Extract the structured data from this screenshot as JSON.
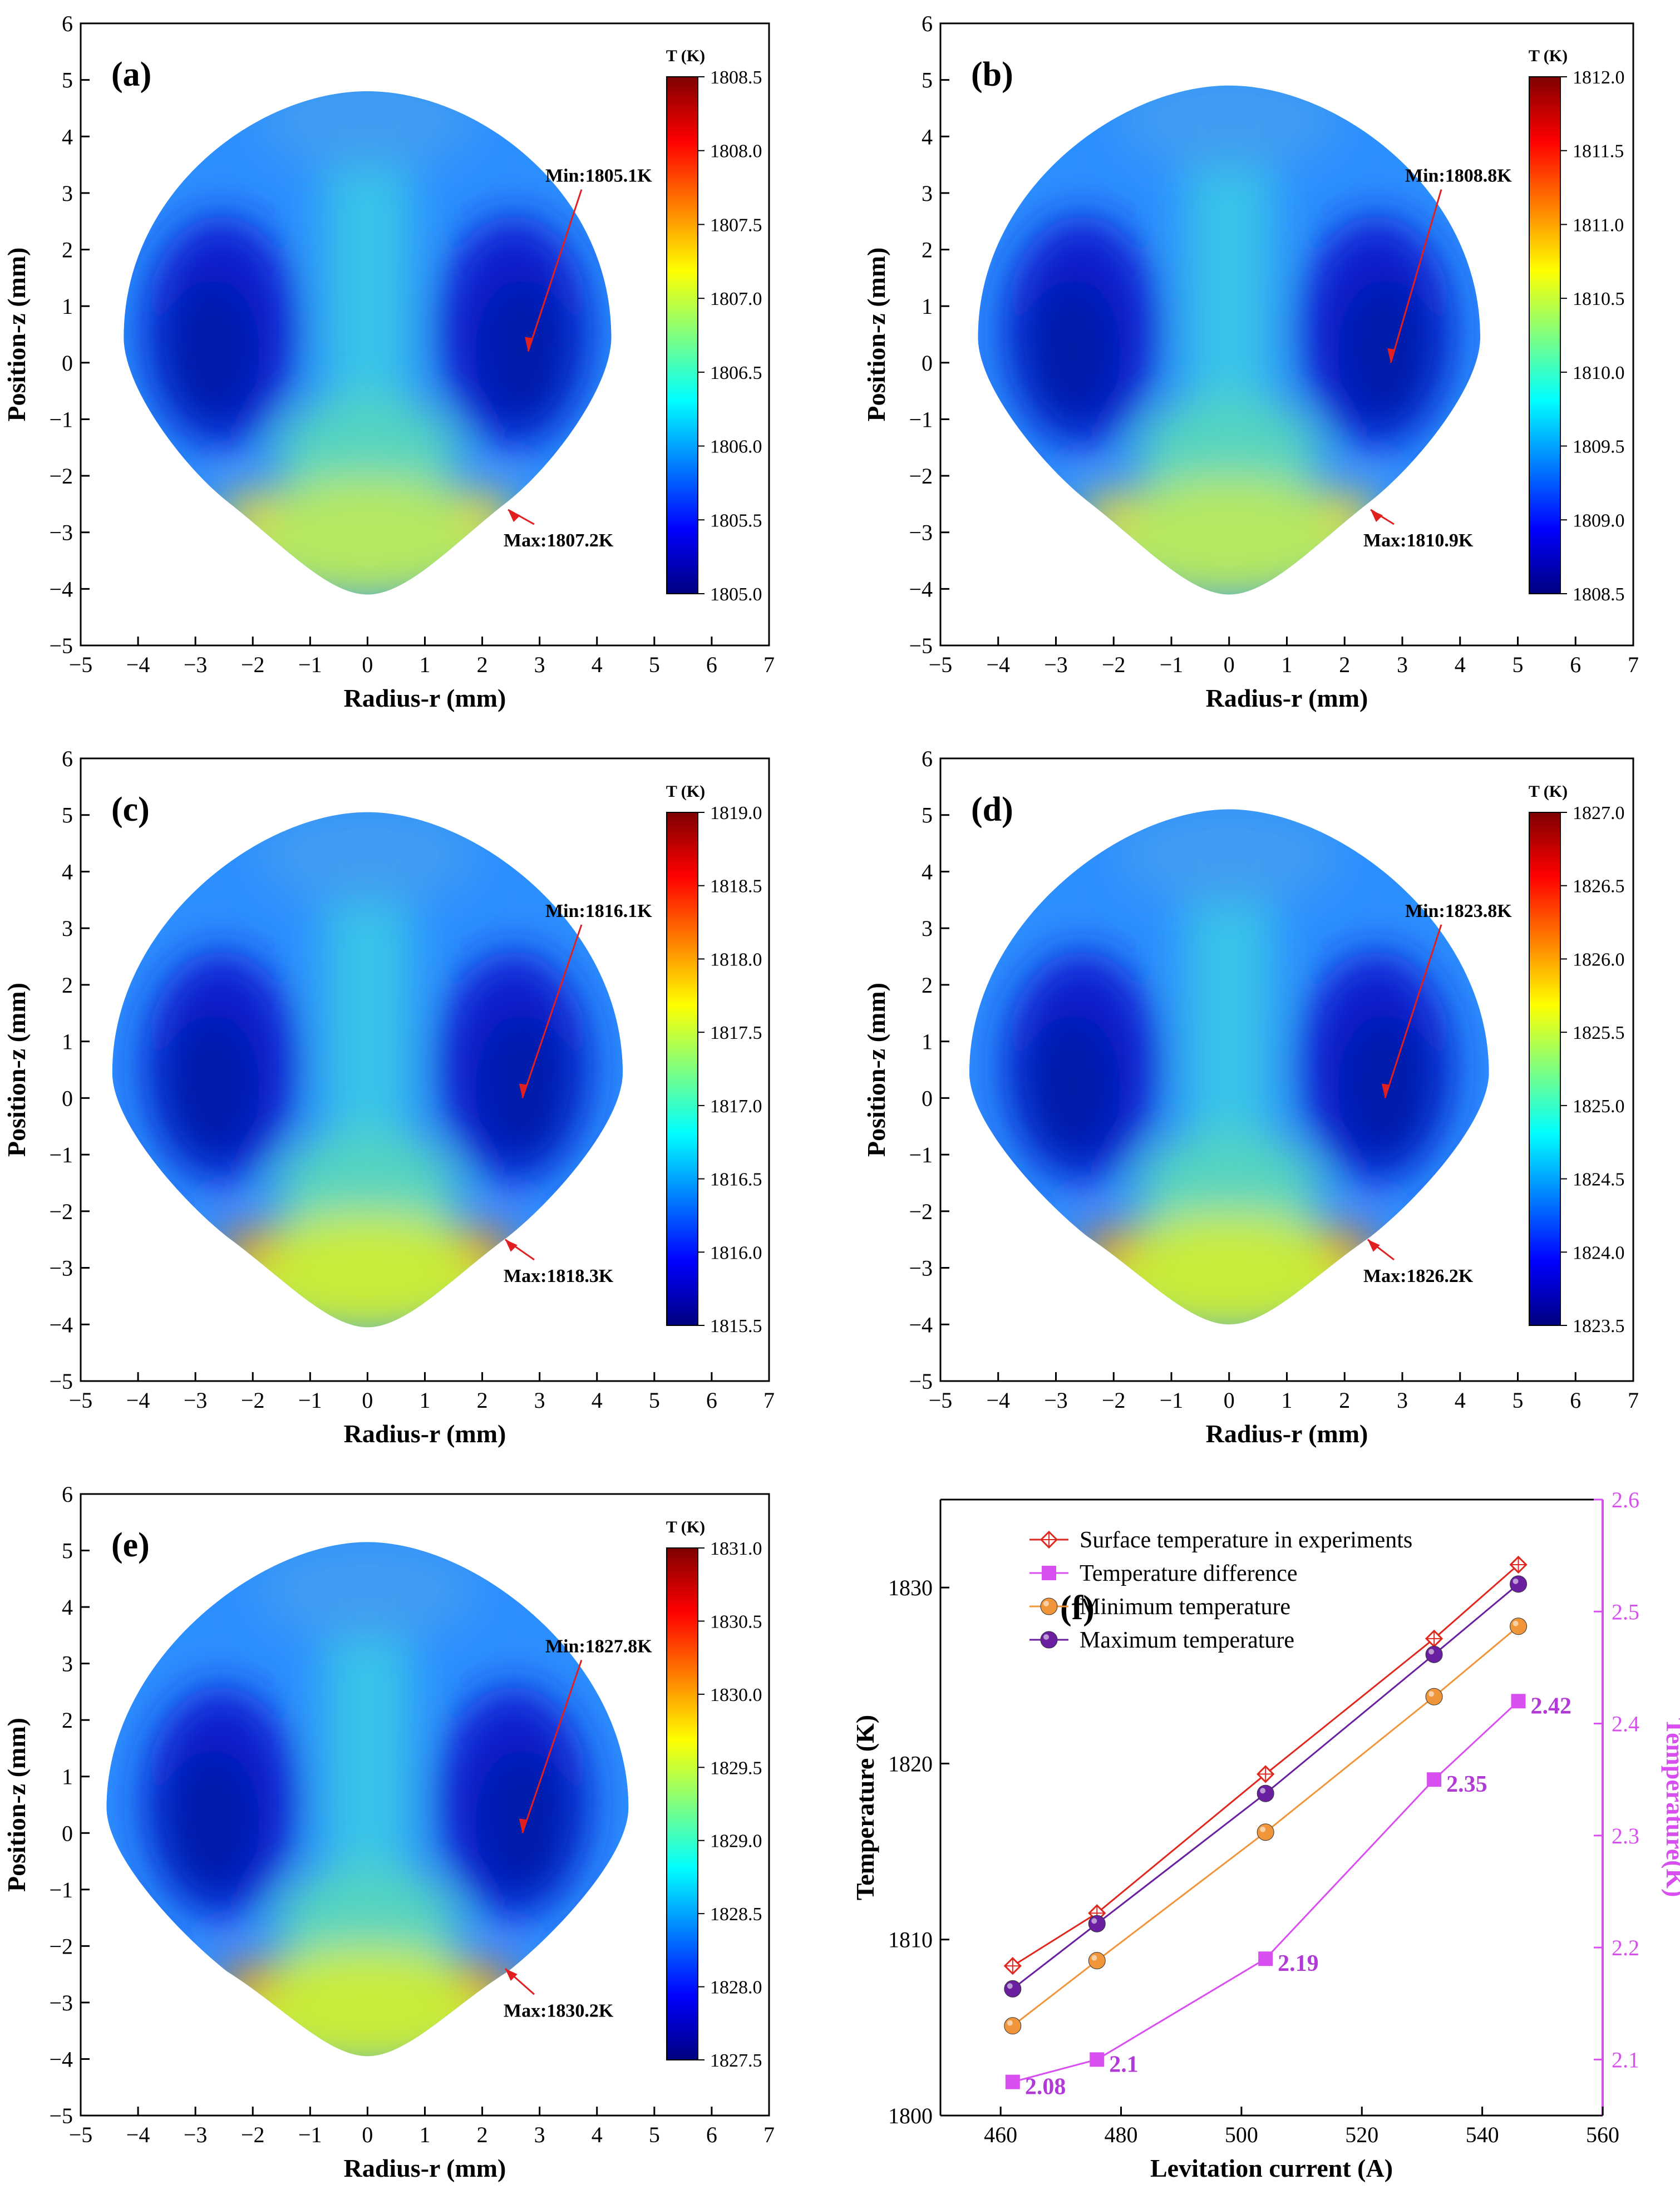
{
  "colors": {
    "jet": [
      "#00007f",
      "#0000ff",
      "#007fff",
      "#00ffff",
      "#7fff7f",
      "#ffff00",
      "#ff7f00",
      "#ff0000",
      "#7f0000"
    ],
    "experiment": "#e0271e",
    "difference": "#d94ef0",
    "minimum": "#f0953a",
    "maximum": "#6a1fa0",
    "arrow": "#e02020"
  },
  "chart_data": [
    {
      "id": "a",
      "type": "heatmap",
      "label": "(a)",
      "xlabel": "Radius-r (mm)",
      "ylabel": "Position-z (mm)",
      "xlim": [
        -5,
        7
      ],
      "ylim": [
        -5,
        6
      ],
      "xticks": [
        "−5",
        "−4",
        "−3",
        "−2",
        "−1",
        "0",
        "1",
        "2",
        "3",
        "4",
        "5",
        "6",
        "7"
      ],
      "yticks": [
        "−5",
        "−4",
        "−3",
        "−2",
        "−1",
        "0",
        "1",
        "2",
        "3",
        "4",
        "5",
        "6"
      ],
      "droplet": {
        "top_z": 4.8,
        "bottom_z": -4.1,
        "max_radius": 4.25
      },
      "colorbar": {
        "title": "T (K)",
        "min": 1805.0,
        "max": 1808.5,
        "ticks": [
          "1805.0",
          "1805.5",
          "1806.0",
          "1806.5",
          "1807.0",
          "1807.5",
          "1808.0",
          "1808.5"
        ]
      },
      "min_label": "Min:1805.1K",
      "max_label": "Max:1807.2K",
      "min_point": [
        2.8,
        0.2
      ],
      "max_point": [
        2.45,
        -2.6
      ]
    },
    {
      "id": "b",
      "type": "heatmap",
      "label": "(b)",
      "xlabel": "Radius-r (mm)",
      "ylabel": "Position-z (mm)",
      "xlim": [
        -5,
        7
      ],
      "ylim": [
        -5,
        6
      ],
      "xticks": [
        "−5",
        "−4",
        "−3",
        "−2",
        "−1",
        "0",
        "1",
        "2",
        "3",
        "4",
        "5",
        "6",
        "7"
      ],
      "yticks": [
        "−5",
        "−4",
        "−3",
        "−2",
        "−1",
        "0",
        "1",
        "2",
        "3",
        "4",
        "5",
        "6"
      ],
      "droplet": {
        "top_z": 4.9,
        "bottom_z": -4.1,
        "max_radius": 4.35
      },
      "colorbar": {
        "title": "T (K)",
        "min": 1808.5,
        "max": 1812.0,
        "ticks": [
          "1808.5",
          "1809.0",
          "1809.5",
          "1810.0",
          "1810.5",
          "1811.0",
          "1811.5",
          "1812.0"
        ]
      },
      "min_label": "Min:1808.8K",
      "max_label": "Max:1810.9K",
      "min_point": [
        2.8,
        0.0
      ],
      "max_point": [
        2.45,
        -2.6
      ]
    },
    {
      "id": "c",
      "type": "heatmap",
      "label": "(c)",
      "xlabel": "Radius-r (mm)",
      "ylabel": "Position-z (mm)",
      "xlim": [
        -5,
        7
      ],
      "ylim": [
        -5,
        6
      ],
      "xticks": [
        "−5",
        "−4",
        "−3",
        "−2",
        "−1",
        "0",
        "1",
        "2",
        "3",
        "4",
        "5",
        "6",
        "7"
      ],
      "yticks": [
        "−5",
        "−4",
        "−3",
        "−2",
        "−1",
        "0",
        "1",
        "2",
        "3",
        "4",
        "5",
        "6"
      ],
      "droplet": {
        "top_z": 5.05,
        "bottom_z": -4.05,
        "max_radius": 4.45
      },
      "colorbar": {
        "title": "T (K)",
        "min": 1815.5,
        "max": 1819.0,
        "ticks": [
          "1815.5",
          "1816.0",
          "1816.5",
          "1817.0",
          "1817.5",
          "1818.0",
          "1818.5",
          "1819.0"
        ]
      },
      "min_label": "Min:1816.1K",
      "max_label": "Max:1818.3K",
      "min_point": [
        2.7,
        0.0
      ],
      "max_point": [
        2.4,
        -2.5
      ]
    },
    {
      "id": "d",
      "type": "heatmap",
      "label": "(d)",
      "xlabel": "Radius-r (mm)",
      "ylabel": "Position-z (mm)",
      "xlim": [
        -5,
        7
      ],
      "ylim": [
        -5,
        6
      ],
      "xticks": [
        "−5",
        "−4",
        "−3",
        "−2",
        "−1",
        "0",
        "1",
        "2",
        "3",
        "4",
        "5",
        "6",
        "7"
      ],
      "yticks": [
        "−5",
        "−4",
        "−3",
        "−2",
        "−1",
        "0",
        "1",
        "2",
        "3",
        "4",
        "5",
        "6"
      ],
      "droplet": {
        "top_z": 5.1,
        "bottom_z": -4.0,
        "max_radius": 4.5
      },
      "colorbar": {
        "title": "T (K)",
        "min": 1823.5,
        "max": 1827.0,
        "ticks": [
          "1823.5",
          "1824.0",
          "1824.5",
          "1825.0",
          "1825.5",
          "1826.0",
          "1826.5",
          "1827.0"
        ]
      },
      "min_label": "Min:1823.8K",
      "max_label": "Max:1826.2K",
      "min_point": [
        2.7,
        0.0
      ],
      "max_point": [
        2.4,
        -2.5
      ]
    },
    {
      "id": "e",
      "type": "heatmap",
      "label": "(e)",
      "xlabel": "Radius-r (mm)",
      "ylabel": "Position-z (mm)",
      "xlim": [
        -5,
        7
      ],
      "ylim": [
        -5,
        6
      ],
      "xticks": [
        "−5",
        "−4",
        "−3",
        "−2",
        "−1",
        "0",
        "1",
        "2",
        "3",
        "4",
        "5",
        "6",
        "7"
      ],
      "yticks": [
        "−5",
        "−4",
        "−3",
        "−2",
        "−1",
        "0",
        "1",
        "2",
        "3",
        "4",
        "5",
        "6"
      ],
      "droplet": {
        "top_z": 5.15,
        "bottom_z": -3.95,
        "max_radius": 4.55
      },
      "colorbar": {
        "title": "T (K)",
        "min": 1827.5,
        "max": 1831.0,
        "ticks": [
          "1827.5",
          "1828.0",
          "1828.5",
          "1829.0",
          "1829.5",
          "1830.0",
          "1830.5",
          "1831.0"
        ]
      },
      "min_label": "Min:1827.8K",
      "max_label": "Max:1830.2K",
      "min_point": [
        2.7,
        0.0
      ],
      "max_point": [
        2.4,
        -2.4
      ]
    },
    {
      "id": "f",
      "type": "line",
      "label": "(f)",
      "xlabel": "Levitation current (A)",
      "ylabel": "Temperature (K)",
      "y2label": "Temperature(K)",
      "xlim": [
        450,
        560
      ],
      "ylim": [
        1800,
        1835
      ],
      "y2lim": [
        2.05,
        2.6
      ],
      "xticks": [
        "460",
        "480",
        "500",
        "520",
        "540",
        "560"
      ],
      "yticks": [
        "1800",
        "1810",
        "1820",
        "1830"
      ],
      "y2ticks": [
        "2.1",
        "2.2",
        "2.3",
        "2.4",
        "2.5",
        "2.6"
      ],
      "x": [
        462,
        476,
        504,
        532,
        546
      ],
      "series": [
        {
          "name": "Surface temperature in experiments",
          "axis": "left",
          "marker": "diamond",
          "values": [
            1808.5,
            1811.5,
            1819.4,
            1827.1,
            1831.3
          ]
        },
        {
          "name": "Temperature difference",
          "axis": "right",
          "marker": "square",
          "values": [
            2.08,
            2.1,
            2.19,
            2.35,
            2.42
          ],
          "labels": [
            "2.08",
            "2.1",
            "2.19",
            "2.35",
            "2.42"
          ]
        },
        {
          "name": "Minimum temperature",
          "axis": "left",
          "marker": "circle",
          "values": [
            1805.1,
            1808.8,
            1816.1,
            1823.8,
            1827.8
          ]
        },
        {
          "name": "Maximum temperature",
          "axis": "left",
          "marker": "circle",
          "values": [
            1807.2,
            1810.9,
            1818.3,
            1826.2,
            1830.2
          ]
        }
      ]
    }
  ]
}
